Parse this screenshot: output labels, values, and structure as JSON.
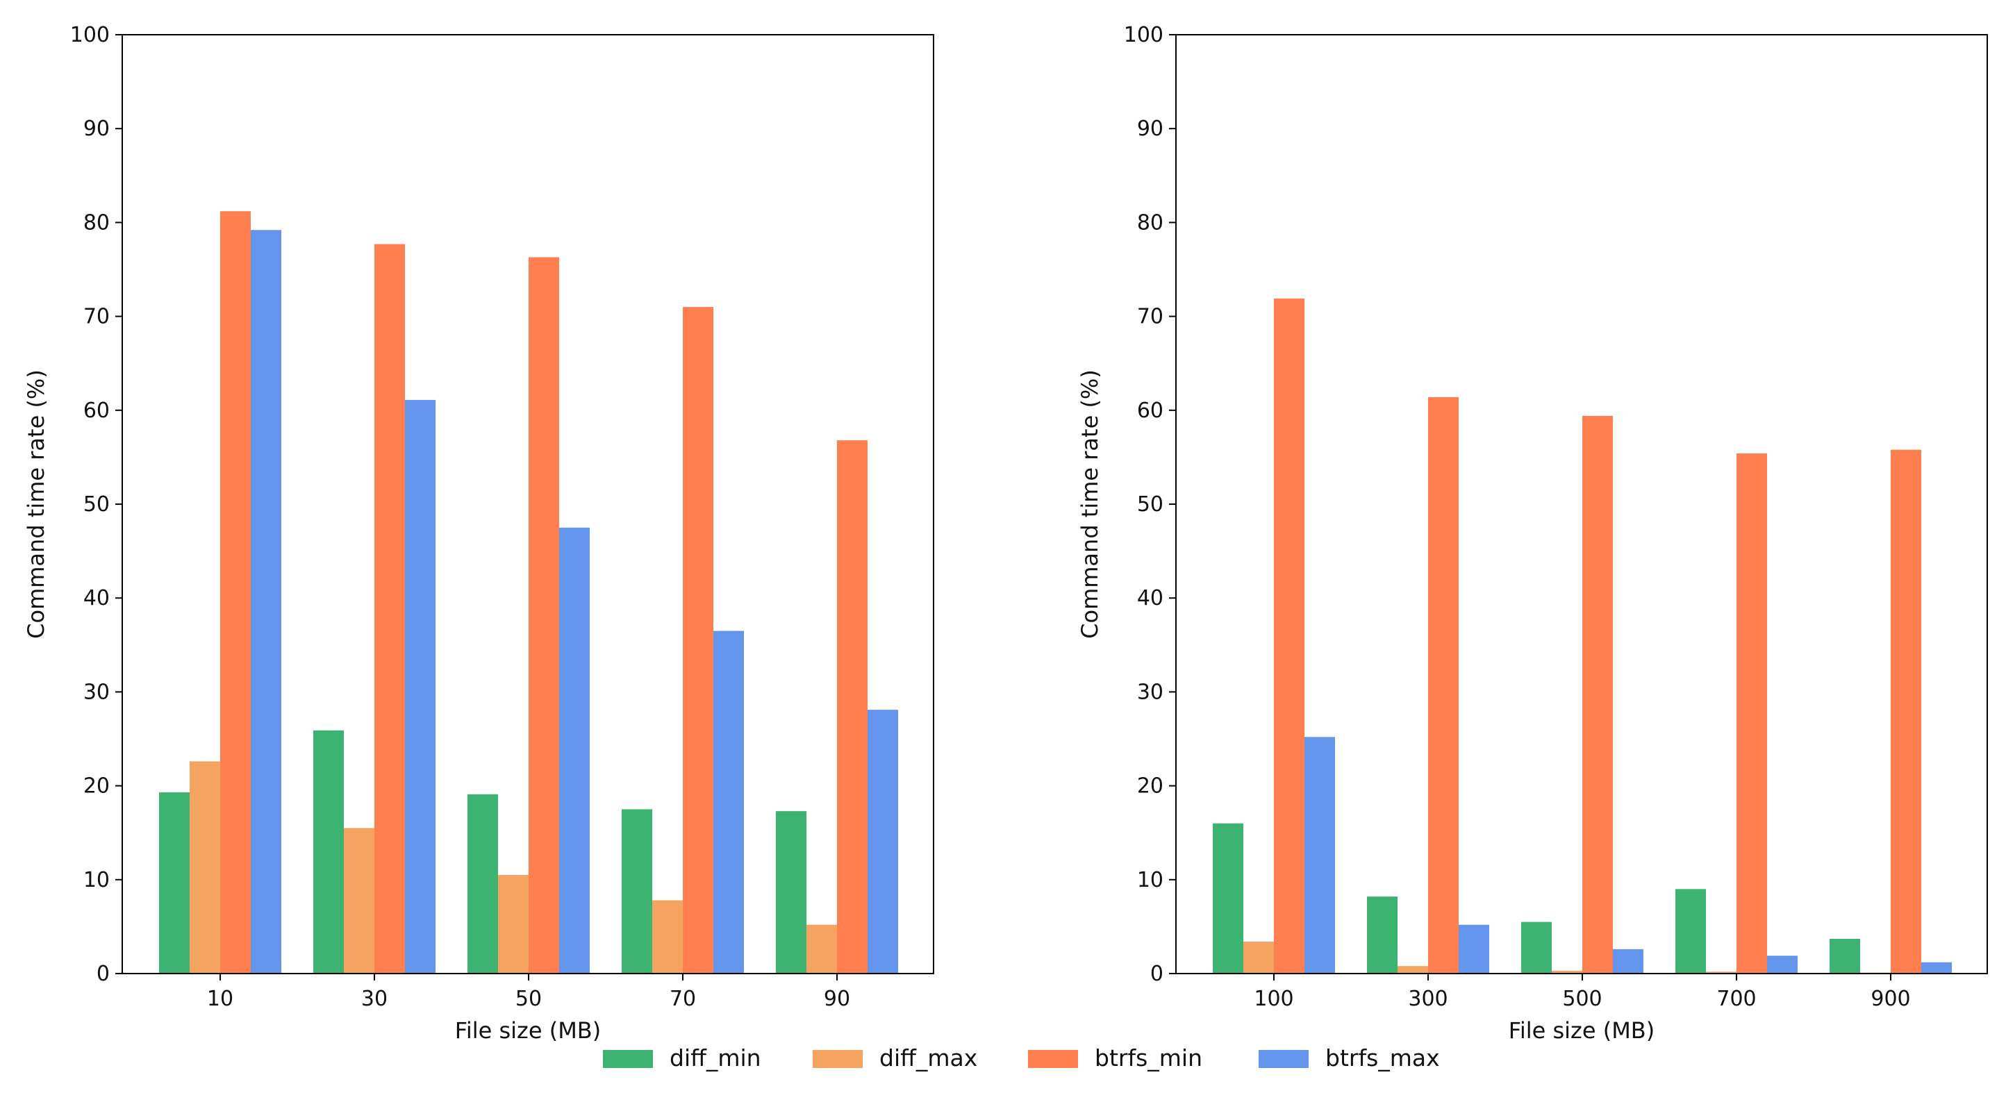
{
  "chart_data": [
    {
      "type": "bar",
      "xlabel": "File size (MB)",
      "ylabel": "Command time rate (%)",
      "ylim": [
        0,
        100
      ],
      "yticks": [
        "0",
        "10",
        "20",
        "30",
        "40",
        "50",
        "60",
        "70",
        "80",
        "90",
        "100"
      ],
      "grid": false,
      "categories": [
        "10",
        "30",
        "50",
        "70",
        "90"
      ],
      "series": [
        {
          "name": "diff_min",
          "values": [
            19.3,
            25.9,
            19.1,
            17.5,
            17.3
          ]
        },
        {
          "name": "diff_max",
          "values": [
            22.6,
            15.5,
            10.5,
            7.8,
            5.2
          ]
        },
        {
          "name": "btrfs_min",
          "values": [
            81.2,
            77.7,
            76.3,
            71.0,
            56.8
          ]
        },
        {
          "name": "btrfs_max",
          "values": [
            79.2,
            61.1,
            47.5,
            36.5,
            28.1
          ]
        }
      ]
    },
    {
      "type": "bar",
      "xlabel": "File size (MB)",
      "ylabel": "Command time rate (%)",
      "ylim": [
        0,
        100
      ],
      "yticks": [
        "0",
        "10",
        "20",
        "30",
        "40",
        "50",
        "60",
        "70",
        "80",
        "90",
        "100"
      ],
      "grid": false,
      "categories": [
        "100",
        "300",
        "500",
        "700",
        "900"
      ],
      "series": [
        {
          "name": "diff_min",
          "values": [
            16.0,
            8.2,
            5.5,
            9.0,
            3.7
          ]
        },
        {
          "name": "diff_max",
          "values": [
            3.4,
            0.8,
            0.3,
            0.2,
            0.1
          ]
        },
        {
          "name": "btrfs_min",
          "values": [
            71.9,
            61.4,
            59.4,
            55.4,
            55.8
          ]
        },
        {
          "name": "btrfs_max",
          "values": [
            25.2,
            5.2,
            2.6,
            1.9,
            1.2
          ]
        }
      ]
    }
  ],
  "legend": {
    "placement": "bottom-center",
    "entries": [
      {
        "label": "diff_min",
        "color": "#3cb371"
      },
      {
        "label": "diff_max",
        "color": "#f4a460"
      },
      {
        "label": "btrfs_min",
        "color": "#ff7f50"
      },
      {
        "label": "btrfs_max",
        "color": "#6495ed"
      }
    ]
  }
}
